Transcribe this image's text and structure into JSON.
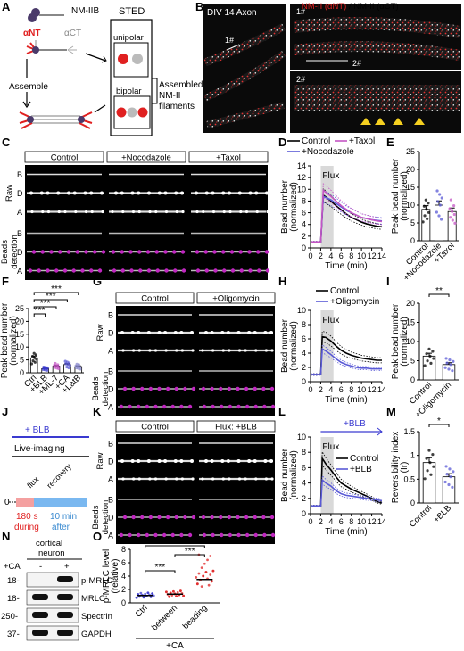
{
  "panel_letters": [
    "A",
    "B",
    "C",
    "D",
    "E",
    "F",
    "G",
    "H",
    "I",
    "J",
    "K",
    "L",
    "M",
    "N",
    "O"
  ],
  "A": {
    "nm2b": "NM-IIB",
    "ant": "αNT",
    "act": "αCT",
    "assemble": "Assemble",
    "sted": "STED",
    "unipolar": "unipolar",
    "bipolar": "bipolar",
    "assembled": [
      "Assembled",
      "NM-II",
      "filaments"
    ]
  },
  "B": {
    "div": "DIV 14 Axon",
    "title_nt": "NM-II (αNT)",
    "title_sep": " / ",
    "title_ct": "NM-II (αCT)",
    "lbl1": "1#",
    "lbl2": "2#"
  },
  "C": {
    "headers": [
      "Control",
      "+Nocodazole",
      "+Taxol"
    ],
    "raw": "Raw",
    "beads": "Beads detection",
    "rows": [
      "B",
      "D",
      "A",
      "B",
      "D",
      "A"
    ]
  },
  "G": {
    "headers": [
      "Control",
      "+Oligomycin"
    ],
    "raw": "Raw",
    "beads": "Beads detection",
    "rows": [
      "B",
      "D",
      "A",
      "B",
      "D",
      "A"
    ]
  },
  "K": {
    "headers": [
      "Control",
      "Flux: +BLB"
    ],
    "raw": "Raw",
    "beads": "Beads detection",
    "rows": [
      "B",
      "D",
      "A",
      "B",
      "D",
      "A"
    ]
  },
  "J": {
    "title": "+ BLB",
    "live": "Live-imaging",
    "flux": "flux",
    "recovery": "recovery",
    "zero": "0",
    "t1": "180 s",
    "t1b": "during",
    "t2": "10 min",
    "t2b": "after"
  },
  "N": {
    "title": [
      "cortical",
      "neuron"
    ],
    "ca": "+CA",
    "minus": "-",
    "plus": "+",
    "mw": [
      "18-",
      "18-",
      "250-",
      "37-"
    ],
    "bands": [
      "p-MRLC",
      "MRLC",
      "Spectrin",
      "GAPDH"
    ]
  },
  "sig": {
    "f": [
      "***",
      "***",
      "***",
      "***"
    ],
    "i": "**",
    "m": "*",
    "o": [
      "***",
      "***",
      "***"
    ]
  },
  "colors": {
    "control": "#000000",
    "nocodazole": "#5a5ad6",
    "taxol": "#c455c4",
    "treat": "#5a5ad6",
    "flux": "#d9d9d9",
    "magenta": "#c026c0",
    "red": "#e02020",
    "blb": "#3a3ad0"
  },
  "chart_data": [
    {
      "id": "D",
      "type": "line",
      "xlabel": "Time (min)",
      "ylabel": "Bead number (normalized)",
      "xlim": [
        0,
        14
      ],
      "ylim": [
        0,
        14
      ],
      "xticks": [
        0,
        2,
        4,
        6,
        8,
        10,
        12,
        14
      ],
      "yticks": [
        0,
        2,
        4,
        6,
        8,
        10,
        12,
        14
      ],
      "annotation": "Flux",
      "flux_range": [
        2,
        4.5
      ],
      "series": [
        {
          "name": "Control",
          "x": [
            0,
            1,
            2,
            2.5,
            3,
            4,
            5,
            6,
            7,
            8,
            9,
            10,
            11,
            12,
            13,
            14
          ],
          "y": [
            1,
            1,
            1,
            9,
            8.7,
            8,
            7.2,
            6.5,
            5.8,
            5.2,
            4.8,
            4.4,
            4.1,
            3.9,
            3.7,
            3.6
          ]
        },
        {
          "name": "+Taxol",
          "x": [
            0,
            1,
            2,
            2.5,
            3,
            4,
            5,
            6,
            7,
            8,
            9,
            10,
            11,
            12,
            13,
            14
          ],
          "y": [
            1,
            1,
            1,
            8.8,
            8.6,
            8.2,
            7.6,
            7,
            6.4,
            6,
            5.6,
            5.2,
            5,
            4.8,
            4.7,
            4.6
          ]
        },
        {
          "name": "+Nocodazole",
          "x": [
            0,
            1,
            2,
            2.5,
            3,
            4,
            5,
            6,
            7,
            8,
            9,
            10,
            11,
            12,
            13,
            14
          ],
          "y": [
            1,
            1,
            1,
            9.8,
            9.5,
            8.8,
            8,
            7.2,
            6.6,
            6,
            5.6,
            5.2,
            5,
            4.8,
            4.6,
            4.5
          ]
        }
      ]
    },
    {
      "id": "E",
      "type": "bar",
      "ylabel": "Peak bead number (normalized)",
      "ylim": [
        0,
        25
      ],
      "yticks": [
        0,
        5,
        10,
        15,
        20,
        25
      ],
      "categories": [
        "Control",
        "+Nocodazole",
        "+Taxol"
      ],
      "values": [
        8.8,
        10,
        8.2
      ]
    },
    {
      "id": "F",
      "type": "bar",
      "ylabel": "Peak bead number (normalized)",
      "ylim": [
        0,
        25
      ],
      "yticks": [
        0,
        5,
        10,
        15,
        20,
        25
      ],
      "categories": [
        "Ctrl",
        "+BLB",
        "+ML-7",
        "+CA",
        "+LatB"
      ],
      "values": [
        5.8,
        1.6,
        2.6,
        3.2,
        2.4
      ]
    },
    {
      "id": "H",
      "type": "line",
      "xlabel": "Time (min)",
      "ylabel": "Bead number (normalized)",
      "xlim": [
        0,
        14
      ],
      "ylim": [
        0,
        10
      ],
      "xticks": [
        0,
        2,
        4,
        6,
        8,
        10,
        12,
        14
      ],
      "yticks": [
        0,
        2,
        4,
        6,
        8,
        10
      ],
      "annotation": "Flux",
      "flux_range": [
        2,
        4.5
      ],
      "series": [
        {
          "name": "Control",
          "x": [
            0,
            1,
            2,
            2.3,
            3,
            4,
            5,
            6,
            7,
            8,
            9,
            10,
            11,
            12,
            13,
            14
          ],
          "y": [
            1,
            1,
            1,
            6.3,
            6.2,
            5.7,
            5,
            4.4,
            4,
            3.7,
            3.5,
            3.3,
            3.2,
            3.1,
            3,
            3
          ]
        },
        {
          "name": "+Oligomycin",
          "x": [
            0,
            1,
            2,
            2.3,
            3,
            4,
            5,
            6,
            7,
            8,
            9,
            10,
            11,
            12,
            13,
            14
          ],
          "y": [
            1,
            1,
            1,
            4.6,
            4.3,
            3.8,
            3.2,
            2.7,
            2.4,
            2.2,
            2,
            1.9,
            1.9,
            1.8,
            1.8,
            1.8
          ]
        }
      ]
    },
    {
      "id": "I",
      "type": "bar",
      "ylabel": "Peak bead number (normalized)",
      "ylim": [
        0,
        20
      ],
      "yticks": [
        0,
        5,
        10,
        15,
        20
      ],
      "categories": [
        "Control",
        "+Oligomycin"
      ],
      "values": [
        6.2,
        4
      ]
    },
    {
      "id": "L",
      "type": "line",
      "xlabel": "Time (min)",
      "ylabel": "Bead number (normalized)",
      "xlim": [
        0,
        14
      ],
      "ylim": [
        0,
        10
      ],
      "xticks": [
        0,
        2,
        4,
        6,
        8,
        10,
        12,
        14
      ],
      "yticks": [
        0,
        2,
        4,
        6,
        8,
        10
      ],
      "annotation": "Flux",
      "flux_range": [
        2,
        4.5
      ],
      "top_label": "+BLB",
      "series": [
        {
          "name": "Control",
          "x": [
            0,
            1,
            2,
            2.3,
            3,
            4,
            5,
            6,
            7,
            8,
            9,
            10,
            11,
            12,
            13,
            14
          ],
          "y": [
            1,
            1,
            1,
            7.2,
            6.5,
            5.7,
            4.8,
            4,
            3.6,
            3.2,
            2.9,
            2.6,
            2.3,
            2,
            1.6,
            1.4
          ]
        },
        {
          "name": "+BLB",
          "x": [
            0,
            1,
            2,
            2.3,
            3,
            4,
            5,
            6,
            7,
            8,
            9,
            10,
            11,
            12,
            13,
            14
          ],
          "y": [
            1,
            1,
            1,
            4.4,
            4,
            3.6,
            3,
            2.6,
            2.4,
            2.3,
            2.2,
            2.1,
            2,
            1.9,
            1.8,
            1.7
          ]
        }
      ]
    },
    {
      "id": "M",
      "type": "bar",
      "ylabel": "Reversibility index (Ir)",
      "ylim": [
        0,
        1.5
      ],
      "yticks": [
        0,
        0.5,
        1,
        1.5
      ],
      "categories": [
        "Control",
        "+BLB"
      ],
      "values": [
        0.85,
        0.55
      ]
    },
    {
      "id": "O",
      "type": "scatter",
      "ylabel": "p-MRLC level (relative)",
      "ylim": [
        0,
        8
      ],
      "yticks": [
        0,
        2,
        4,
        6,
        8
      ],
      "categories": [
        "Ctrl",
        "between",
        "beading"
      ],
      "group_label": "+CA",
      "values": [
        1.1,
        1.3,
        3.5
      ]
    }
  ]
}
